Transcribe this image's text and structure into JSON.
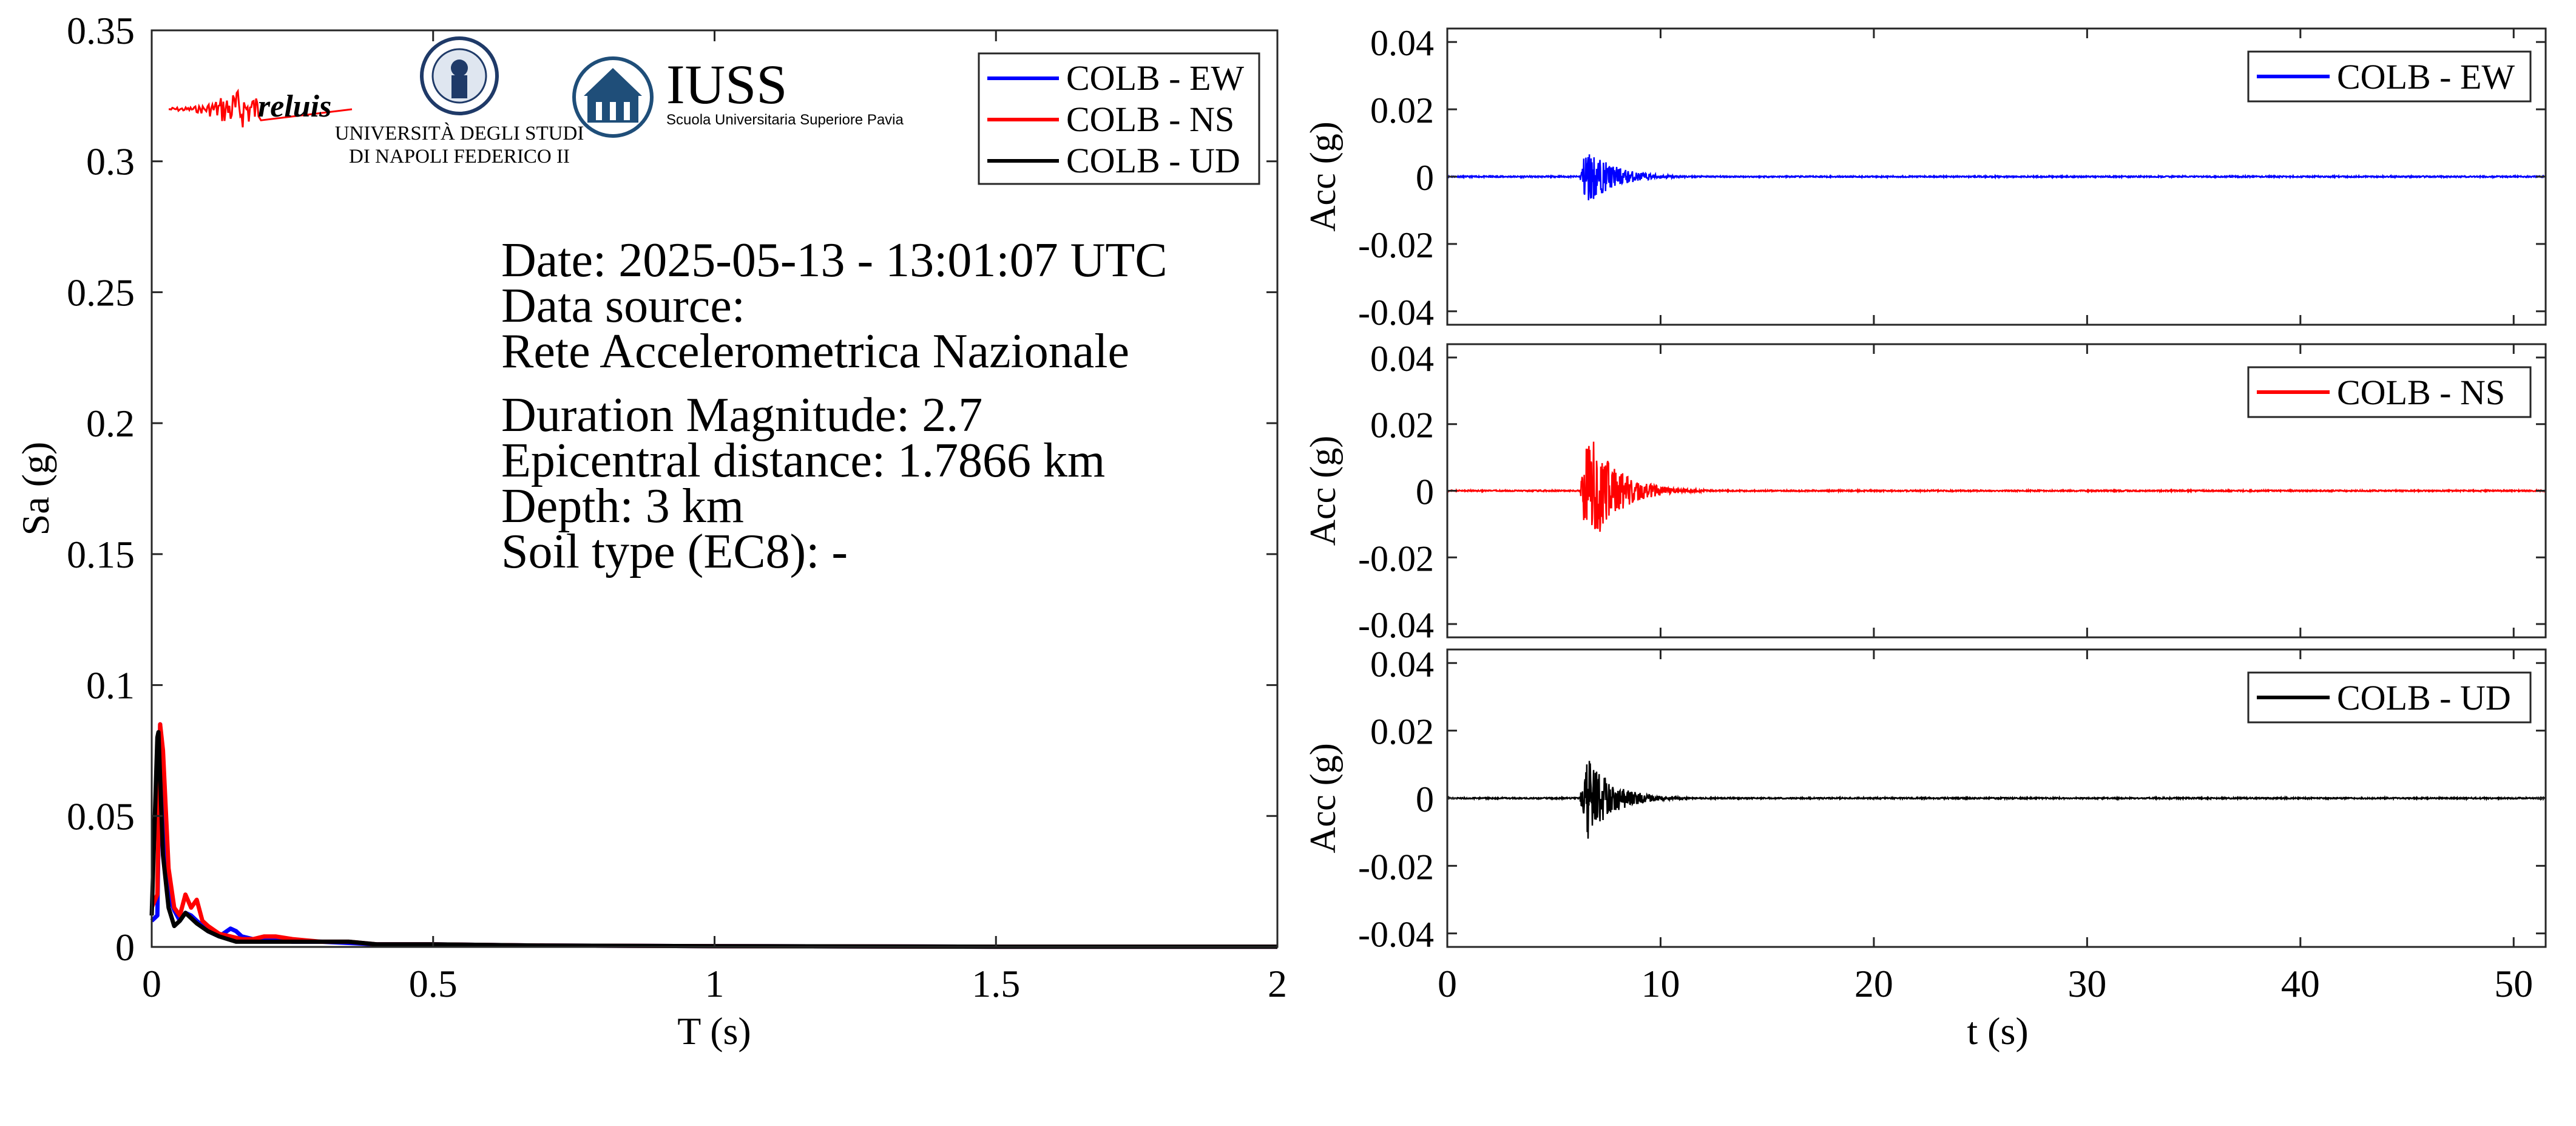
{
  "colors": {
    "ew": "#0000ff",
    "ns": "#ff0000",
    "ud": "#000000",
    "iuss": "#1f4e79",
    "reluis": "#1a237e"
  },
  "logos": {
    "reluis": "reluis",
    "unina_line1": "UNIVERSITÀ DEGLI STUDI",
    "unina_line2": "DI NAPOLI FEDERICO II",
    "iuss_title": "IUSS",
    "iuss_sub": "Scuola Universitaria Superiore Pavia"
  },
  "info": {
    "date": "Date: 2025-05-13 - 13:01:07 UTC",
    "source_label": "Data source:",
    "source": "Rete Accelerometrica Nazionale",
    "magnitude": "Duration Magnitude: 2.7",
    "distance": "Epicentral distance: 1.7866 km",
    "depth": "Depth: 3 km",
    "soil": "Soil type (EC8): -"
  },
  "chart_data": [
    {
      "type": "line",
      "xlabel": "T (s)",
      "ylabel": "Sa (g)",
      "xlim": [
        0,
        2
      ],
      "ylim": [
        0,
        0.35
      ],
      "xticks": [
        0,
        0.5,
        1,
        1.5,
        2
      ],
      "xtick_labels": [
        "0",
        "0.5",
        "1",
        "1.5",
        "2"
      ],
      "yticks": [
        0,
        0.05,
        0.1,
        0.15,
        0.2,
        0.25,
        0.3,
        0.35
      ],
      "ytick_labels": [
        "0",
        "0.05",
        "0.1",
        "0.15",
        "0.2",
        "0.25",
        "0.3",
        "0.35"
      ],
      "legend_position": "top-right",
      "series": [
        {
          "name": "COLB - EW",
          "color": "#0000ff",
          "x": [
            0,
            0.01,
            0.015,
            0.02,
            0.03,
            0.04,
            0.05,
            0.06,
            0.07,
            0.08,
            0.09,
            0.1,
            0.12,
            0.14,
            0.15,
            0.16,
            0.18,
            0.2,
            0.25,
            0.3,
            0.35,
            0.4,
            0.5,
            0.7,
            1.0,
            1.5,
            2.0
          ],
          "y": [
            0.01,
            0.012,
            0.085,
            0.05,
            0.02,
            0.014,
            0.01,
            0.013,
            0.012,
            0.01,
            0.008,
            0.006,
            0.004,
            0.007,
            0.006,
            0.004,
            0.003,
            0.003,
            0.002,
            0.002,
            0.0015,
            0.001,
            0.001,
            0.0005,
            0.0003,
            0.0001,
            0.0001
          ]
        },
        {
          "name": "COLB - NS",
          "color": "#ff0000",
          "x": [
            0,
            0.01,
            0.015,
            0.02,
            0.03,
            0.04,
            0.05,
            0.06,
            0.07,
            0.08,
            0.09,
            0.1,
            0.12,
            0.14,
            0.16,
            0.18,
            0.2,
            0.22,
            0.25,
            0.3,
            0.35,
            0.4,
            0.5,
            0.7,
            1.0,
            1.5,
            2.0
          ],
          "y": [
            0.015,
            0.02,
            0.085,
            0.075,
            0.03,
            0.015,
            0.012,
            0.02,
            0.015,
            0.018,
            0.01,
            0.008,
            0.005,
            0.004,
            0.003,
            0.003,
            0.004,
            0.004,
            0.003,
            0.002,
            0.002,
            0.001,
            0.001,
            0.0005,
            0.0003,
            0.0001,
            0.0001
          ]
        },
        {
          "name": "COLB - UD",
          "color": "#000000",
          "x": [
            0,
            0.01,
            0.012,
            0.02,
            0.03,
            0.04,
            0.05,
            0.06,
            0.07,
            0.08,
            0.1,
            0.12,
            0.15,
            0.2,
            0.25,
            0.3,
            0.35,
            0.4,
            0.5,
            0.7,
            1.0,
            1.5,
            2.0
          ],
          "y": [
            0.012,
            0.08,
            0.082,
            0.035,
            0.015,
            0.008,
            0.01,
            0.013,
            0.011,
            0.009,
            0.006,
            0.004,
            0.002,
            0.002,
            0.002,
            0.002,
            0.002,
            0.001,
            0.001,
            0.0005,
            0.0003,
            0.0001,
            0.0001
          ]
        }
      ]
    },
    {
      "type": "line",
      "xlabel": "",
      "ylabel": "Acc (g)",
      "xlim": [
        0,
        51.5
      ],
      "ylim": [
        -0.044,
        0.044
      ],
      "xticks": [
        0,
        10,
        20,
        30,
        40,
        50
      ],
      "yticks": [
        -0.04,
        -0.02,
        0,
        0.02,
        0.04
      ],
      "ytick_labels": [
        "-0.04",
        "-0.02",
        "0",
        "0.02",
        "0.04"
      ],
      "legend_position": "top-right",
      "series": [
        {
          "name": "COLB - EW",
          "color": "#0000ff",
          "signal": {
            "start": 6.2,
            "peak_time": 6.5,
            "peak": 0.009,
            "decay": 1.3,
            "end": 10.5,
            "noise": 0.0002
          }
        }
      ]
    },
    {
      "type": "line",
      "xlabel": "",
      "ylabel": "Acc (g)",
      "xlim": [
        0,
        51.5
      ],
      "ylim": [
        -0.044,
        0.044
      ],
      "xticks": [
        0,
        10,
        20,
        30,
        40,
        50
      ],
      "yticks": [
        -0.04,
        -0.02,
        0,
        0.02,
        0.04
      ],
      "ytick_labels": [
        "-0.04",
        "-0.02",
        "0",
        "0.02",
        "0.04"
      ],
      "legend_position": "top-right",
      "series": [
        {
          "name": "COLB - NS",
          "color": "#ff0000",
          "signal": {
            "start": 6.2,
            "peak_time": 6.6,
            "peak": 0.019,
            "decay": 1.3,
            "end": 11.0,
            "noise": 0.0002
          }
        }
      ]
    },
    {
      "type": "line",
      "xlabel": "t (s)",
      "ylabel": "Acc (g)",
      "xlim": [
        0,
        51.5
      ],
      "ylim": [
        -0.044,
        0.044
      ],
      "xticks": [
        0,
        10,
        20,
        30,
        40,
        50
      ],
      "xtick_labels": [
        "0",
        "10",
        "20",
        "30",
        "40",
        "50"
      ],
      "yticks": [
        -0.04,
        -0.02,
        0,
        0.02,
        0.04
      ],
      "ytick_labels": [
        "-0.04",
        "-0.02",
        "0",
        "0.02",
        "0.04"
      ],
      "legend_position": "top-right",
      "series": [
        {
          "name": "COLB - UD",
          "color": "#000000",
          "signal": {
            "start": 6.2,
            "peak_time": 6.6,
            "peak": 0.012,
            "decay": 1.2,
            "end": 10.5,
            "noise": 0.0002
          }
        }
      ]
    }
  ]
}
